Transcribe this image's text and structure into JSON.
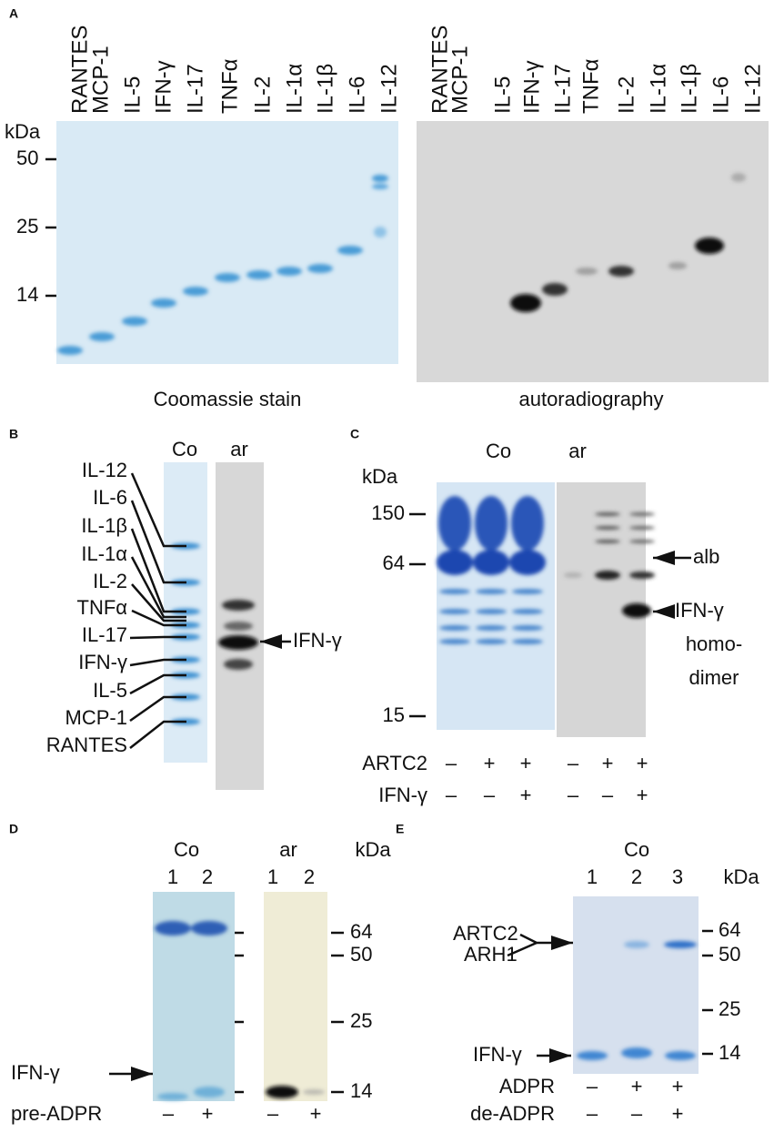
{
  "panels": {
    "a": {
      "label": "A",
      "lanes": [
        "RANTES",
        "MCP-1",
        "IL-5",
        "IFN-γ",
        "IL-17",
        "TNFα",
        "IL-2",
        "IL-1α",
        "IL-1β",
        "IL-6",
        "IL-12"
      ],
      "unit": "kDa",
      "markers": [
        "50",
        "25",
        "14"
      ],
      "left_caption": "Coomassie stain",
      "right_caption": "autoradiography"
    },
    "b": {
      "label": "B",
      "columns": [
        "Co",
        "ar"
      ],
      "proteins": [
        "IL-12",
        "IL-6",
        "IL-1β",
        "IL-1α",
        "IL-2",
        "TNFα",
        "IL-17",
        "IFN-γ",
        "IL-5",
        "MCP-1",
        "RANTES"
      ],
      "arrow_label": "IFN-γ"
    },
    "c": {
      "label": "C",
      "unit": "kDa",
      "columns": [
        "Co",
        "ar"
      ],
      "markers": [
        "150",
        "64",
        "15"
      ],
      "alb": "alb",
      "dimer_label": [
        "IFN-γ",
        "homo-",
        "dimer"
      ],
      "rows": [
        {
          "name": "ARTC2",
          "signs": [
            "–",
            "+",
            "+",
            "–",
            "+",
            "+"
          ]
        },
        {
          "name": "IFN-γ",
          "signs": [
            "–",
            "–",
            "+",
            "–",
            "–",
            "+"
          ]
        }
      ]
    },
    "d": {
      "label": "D",
      "columns": [
        "Co",
        "ar"
      ],
      "lanes": [
        "1",
        "2",
        "1",
        "2"
      ],
      "unit": "kDa",
      "markers": [
        "64",
        "50",
        "25",
        "14"
      ],
      "arrow_label": "IFN-γ",
      "rows": [
        {
          "name": "pre-ADPR",
          "signs": [
            "–",
            "+",
            "–",
            "+"
          ]
        }
      ]
    },
    "e": {
      "label": "E",
      "column": "Co",
      "lanes": [
        "1",
        "2",
        "3"
      ],
      "unit": "kDa",
      "markers": [
        "64",
        "50",
        "25",
        "14"
      ],
      "arrow_labels": [
        "ARTC2",
        "ARH1",
        "IFN-γ"
      ],
      "rows": [
        {
          "name": "ADPR",
          "signs": [
            "–",
            "+",
            "+"
          ]
        },
        {
          "name": "de-ADPR",
          "signs": [
            "–",
            "–",
            "+"
          ]
        }
      ]
    }
  }
}
